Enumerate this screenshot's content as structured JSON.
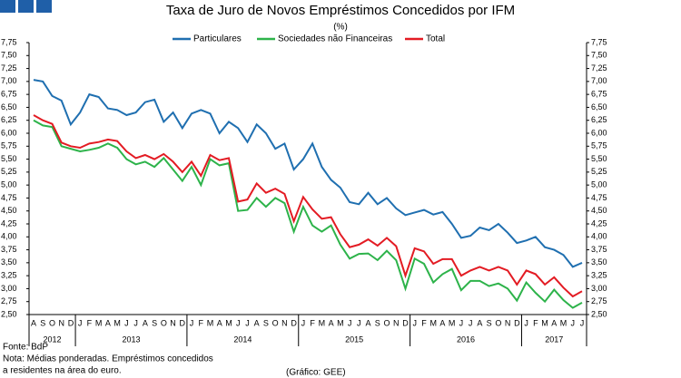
{
  "chart_data": {
    "type": "line",
    "title": "Taxa de Juro de Novos Empréstimos Concedidos por IFM",
    "subtitle": "(%)",
    "categories": [
      "A",
      "S",
      "O",
      "N",
      "D",
      "J",
      "F",
      "M",
      "A",
      "M",
      "J",
      "J",
      "A",
      "S",
      "O",
      "N",
      "D",
      "J",
      "F",
      "M",
      "A",
      "M",
      "J",
      "J",
      "A",
      "S",
      "O",
      "N",
      "D",
      "J",
      "F",
      "M",
      "A",
      "M",
      "J",
      "J",
      "A",
      "S",
      "O",
      "N",
      "D",
      "J",
      "F",
      "M",
      "A",
      "M",
      "J",
      "J",
      "A",
      "S",
      "O",
      "N",
      "D",
      "J",
      "F",
      "M",
      "A",
      "M",
      "J",
      "J"
    ],
    "years": [
      "2012",
      "2013",
      "2014",
      "2015",
      "2016",
      "2017"
    ],
    "series": [
      {
        "name": "Particulares",
        "color": "#1f6fb0",
        "values": [
          7.03,
          7.0,
          6.72,
          6.63,
          6.17,
          6.4,
          6.75,
          6.7,
          6.48,
          6.45,
          6.35,
          6.4,
          6.6,
          6.65,
          6.22,
          6.4,
          6.1,
          6.38,
          6.45,
          6.38,
          6.0,
          6.22,
          6.1,
          5.83,
          6.17,
          6.0,
          5.7,
          5.8,
          5.3,
          5.5,
          5.8,
          5.35,
          5.1,
          4.95,
          4.67,
          4.63,
          4.85,
          4.63,
          4.75,
          4.55,
          4.42,
          4.47,
          4.52,
          4.43,
          4.48,
          4.25,
          3.98,
          4.02,
          4.18,
          4.13,
          4.25,
          4.08,
          3.88,
          3.93,
          4.0,
          3.8,
          3.75,
          3.65,
          3.42,
          3.5
        ]
      },
      {
        "name": "Sociedades não Financeiras",
        "color": "#2db34a",
        "values": [
          6.25,
          6.15,
          6.12,
          5.75,
          5.7,
          5.65,
          5.68,
          5.72,
          5.8,
          5.72,
          5.5,
          5.4,
          5.45,
          5.35,
          5.52,
          5.3,
          5.08,
          5.35,
          5.0,
          5.5,
          5.38,
          5.42,
          4.5,
          4.52,
          4.75,
          4.58,
          4.75,
          4.65,
          4.1,
          4.58,
          4.22,
          4.1,
          4.22,
          3.85,
          3.58,
          3.67,
          3.68,
          3.55,
          3.73,
          3.55,
          3.0,
          3.58,
          3.48,
          3.12,
          3.28,
          3.38,
          2.97,
          3.15,
          3.15,
          3.05,
          3.1,
          3.0,
          2.77,
          3.12,
          2.92,
          2.75,
          2.98,
          2.78,
          2.63,
          2.73
        ]
      },
      {
        "name": "Total",
        "color": "#e31b23",
        "values": [
          6.35,
          6.25,
          6.18,
          5.82,
          5.75,
          5.72,
          5.8,
          5.83,
          5.88,
          5.85,
          5.65,
          5.52,
          5.58,
          5.5,
          5.6,
          5.45,
          5.25,
          5.45,
          5.18,
          5.58,
          5.48,
          5.52,
          4.68,
          4.72,
          5.03,
          4.85,
          4.93,
          4.83,
          4.3,
          4.77,
          4.53,
          4.35,
          4.38,
          4.05,
          3.8,
          3.85,
          3.95,
          3.83,
          3.98,
          3.82,
          3.25,
          3.78,
          3.72,
          3.48,
          3.57,
          3.57,
          3.25,
          3.35,
          3.42,
          3.35,
          3.42,
          3.35,
          3.08,
          3.35,
          3.28,
          3.08,
          3.22,
          3.02,
          2.85,
          2.95
        ]
      }
    ],
    "ylim": [
      2.5,
      7.75
    ],
    "yticks": [
      {
        "value": 2.5,
        "label": "2,50"
      },
      {
        "value": 2.75,
        "label": "2,75"
      },
      {
        "value": 3,
        "label": "3,00"
      },
      {
        "value": 3.25,
        "label": "3,25"
      },
      {
        "value": 3.5,
        "label": "3,50"
      },
      {
        "value": 3.75,
        "label": "3,75"
      },
      {
        "value": 4,
        "label": "4,00"
      },
      {
        "value": 4.25,
        "label": "4,25"
      },
      {
        "value": 4.5,
        "label": "4,50"
      },
      {
        "value": 4.75,
        "label": "4,75"
      },
      {
        "value": 5,
        "label": "5,00"
      },
      {
        "value": 5.25,
        "label": "5,25"
      },
      {
        "value": 5.5,
        "label": "5,50"
      },
      {
        "value": 5.75,
        "label": "5,75"
      },
      {
        "value": 6,
        "label": "6,00"
      },
      {
        "value": 6.25,
        "label": "6,25"
      },
      {
        "value": 6.5,
        "label": "6,50"
      },
      {
        "value": 6.75,
        "label": "6,75"
      },
      {
        "value": 7,
        "label": "7,00"
      },
      {
        "value": 7.25,
        "label": "7,25"
      },
      {
        "value": 7.5,
        "label": "7,50"
      },
      {
        "value": 7.75,
        "label": "7,75"
      }
    ],
    "source": "Fonte: BdP",
    "notes": [
      "Nota: Médias ponderadas. Empréstimos concedidos",
      "a residentes na área do euro."
    ],
    "credit": "(Gráfico: GEE)"
  }
}
